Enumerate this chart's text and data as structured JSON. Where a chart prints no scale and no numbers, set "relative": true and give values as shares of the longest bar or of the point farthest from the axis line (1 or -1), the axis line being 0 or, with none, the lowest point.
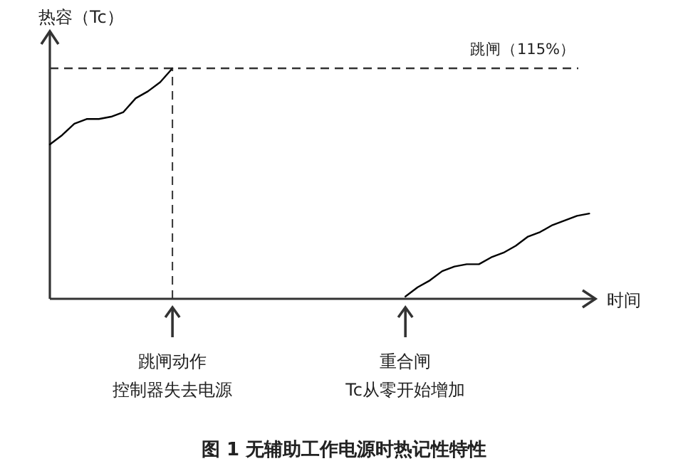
{
  "chart_data": {
    "type": "line",
    "title": "图 1 无辅助工作电源时热记性特性",
    "xlabel": "时间",
    "ylabel": "热容（Tc）",
    "relative": true,
    "categories": [
      null,
      null,
      null,
      null,
      null,
      null,
      null,
      null,
      null,
      null,
      null,
      null,
      null,
      null,
      null,
      null,
      null,
      null,
      null,
      null,
      null,
      null,
      null,
      null,
      null,
      null,
      null,
      null,
      null,
      null,
      null,
      null,
      null,
      null,
      null,
      null,
      null,
      null,
      null,
      null,
      null,
      null,
      null,
      null,
      null
    ],
    "series": [
      {
        "color": "#000000",
        "values": [
          0.67,
          0.71,
          0.76,
          0.78,
          0.78,
          0.79,
          0.81,
          0.87,
          0.9,
          0.94,
          1,
          null,
          null,
          null,
          null,
          null,
          null,
          null,
          null,
          null,
          null,
          null,
          null,
          null,
          null,
          null,
          null,
          null,
          null,
          null,
          null,
          null,
          null,
          null,
          null,
          null,
          null,
          null,
          null,
          null,
          null,
          null,
          null,
          null,
          null
        ]
      },
      {
        "color": "#000000",
        "values": [
          null,
          null,
          null,
          null,
          null,
          null,
          null,
          null,
          null,
          null,
          null,
          null,
          null,
          null,
          null,
          null,
          null,
          null,
          null,
          null,
          null,
          null,
          null,
          null,
          null,
          null,
          null,
          null,
          null,
          0.01,
          0.05,
          0.08,
          0.12,
          0.14,
          0.15,
          0.15,
          0.18,
          0.2,
          0.23,
          0.27,
          0.29,
          0.32,
          0.34,
          0.36,
          0.37
        ]
      }
    ],
    "ref_lines": [
      {
        "axis": "y",
        "value": 1,
        "label": "跳闸（115%）",
        "line_style": "dashed"
      }
    ],
    "annotations": [
      "跳闸动作",
      "控制器失去电源",
      "重合闸",
      "Tc从零开始增加"
    ]
  }
}
